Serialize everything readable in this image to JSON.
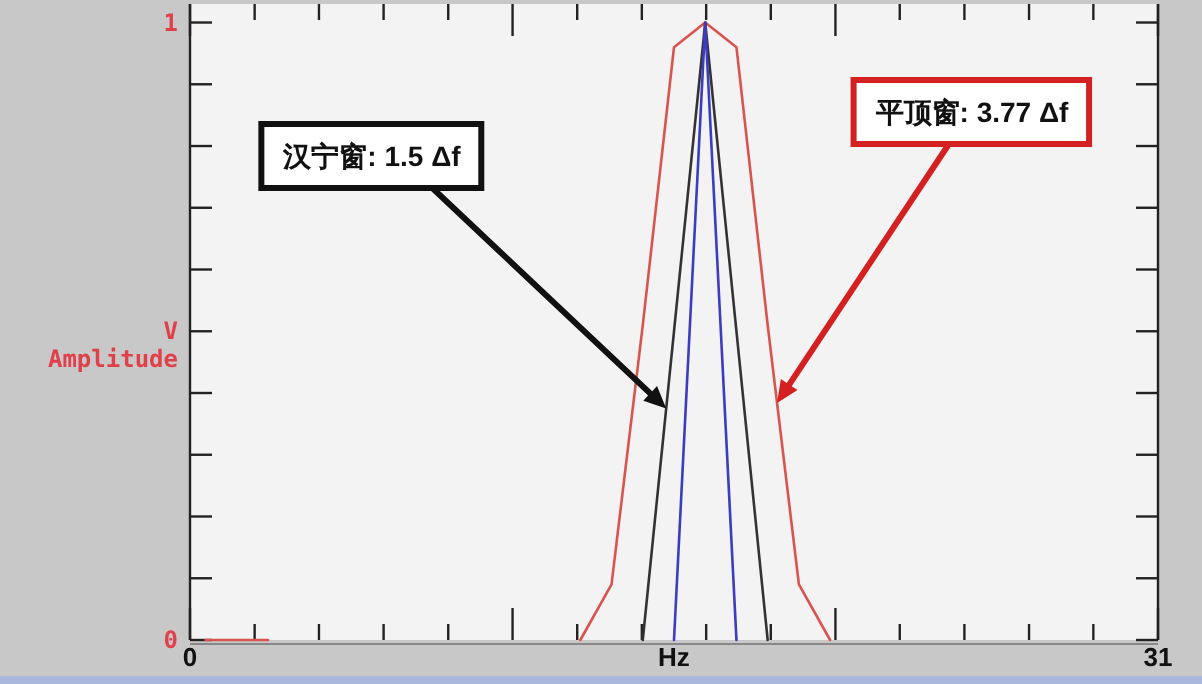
{
  "chart_data": {
    "type": "line",
    "xlabel": "Hz",
    "ylabel": "Amplitude",
    "xlim": [
      0,
      31
    ],
    "ylim": [
      0,
      1.03
    ],
    "xticks": [
      {
        "value": 0,
        "label": "0"
      },
      {
        "value": 2.07,
        "label": null
      },
      {
        "value": 4.13,
        "label": null
      },
      {
        "value": 6.2,
        "label": null
      },
      {
        "value": 8.27,
        "label": null
      },
      {
        "value": 10.33,
        "label": null
      },
      {
        "value": 12.4,
        "label": null
      },
      {
        "value": 14.47,
        "label": null
      },
      {
        "value": 16.53,
        "label": null
      },
      {
        "value": 18.6,
        "label": null
      },
      {
        "value": 20.67,
        "label": null
      },
      {
        "value": 22.73,
        "label": null
      },
      {
        "value": 24.8,
        "label": null
      },
      {
        "value": 26.87,
        "label": null
      },
      {
        "value": 28.93,
        "label": null
      },
      {
        "value": 31,
        "label": "31"
      }
    ],
    "yticks": [
      {
        "value": 0,
        "label": "0"
      },
      {
        "value": 0.1,
        "label": null
      },
      {
        "value": 0.2,
        "label": null
      },
      {
        "value": 0.3,
        "label": null
      },
      {
        "value": 0.4,
        "label": null
      },
      {
        "value": 0.5,
        "label": "V"
      },
      {
        "value": 0.6,
        "label": null
      },
      {
        "value": 0.7,
        "label": null
      },
      {
        "value": 0.8,
        "label": null
      },
      {
        "value": 0.9,
        "label": null
      },
      {
        "value": 1,
        "label": "1"
      }
    ],
    "grid": false,
    "series": [
      {
        "color": "#d9534f",
        "x": [
          0.5,
          1.5,
          2.5,
          7.5,
          12.5,
          13.5,
          14.5,
          15.5,
          16.5,
          17.5,
          18.5,
          19.5,
          20.5
        ],
        "values": [
          0,
          0,
          0,
          null,
          0,
          0.09,
          0.51,
          0.96,
          1,
          0.96,
          0.51,
          0.09,
          0
        ]
      },
      {
        "color": "#333333",
        "x": [
          14.5,
          15.5,
          16.5,
          17.5,
          18.5
        ],
        "values": [
          0,
          0.5,
          1,
          0.5,
          0
        ]
      },
      {
        "color": "#3c3cc0",
        "x": [
          15.5,
          16.5,
          17.5
        ],
        "values": [
          0,
          1,
          0
        ]
      }
    ],
    "annotations": [
      "汉宁窗: 1.5 Δf",
      "平顶窗: 3.77 Δf"
    ]
  }
}
